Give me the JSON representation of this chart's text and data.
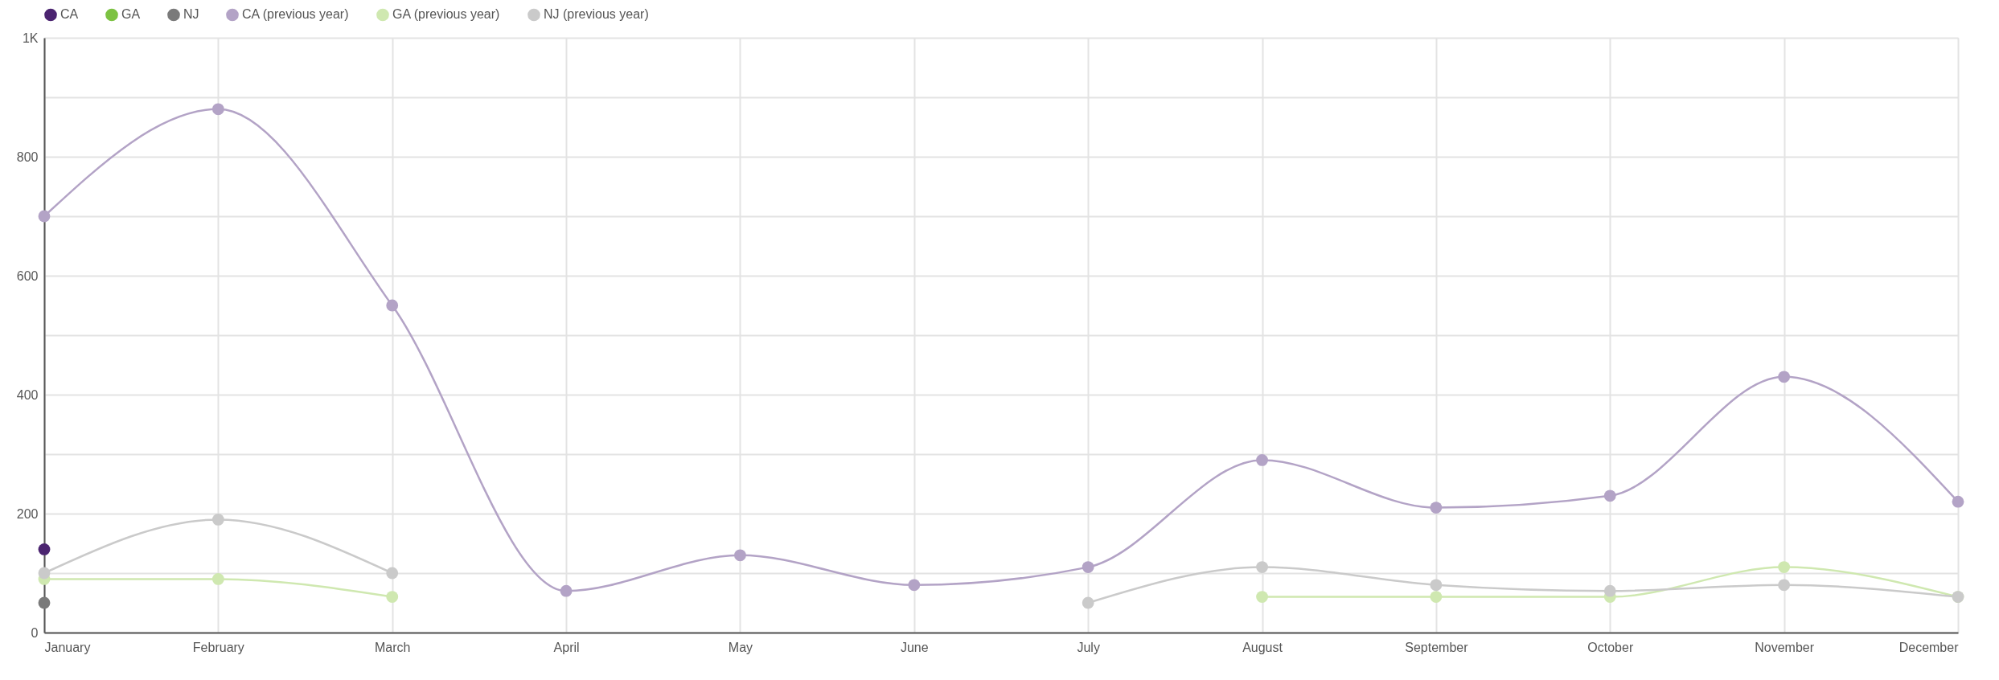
{
  "chart_data": {
    "type": "line",
    "categories": [
      "January",
      "February",
      "March",
      "April",
      "May",
      "June",
      "July",
      "August",
      "September",
      "October",
      "November",
      "December"
    ],
    "series": [
      {
        "name": "CA",
        "color": "#4b2470",
        "values": [
          140,
          null,
          null,
          null,
          null,
          null,
          null,
          null,
          null,
          null,
          null,
          null
        ]
      },
      {
        "name": "GA",
        "color": "#7cc242",
        "values": [
          null,
          null,
          null,
          null,
          null,
          null,
          null,
          null,
          null,
          null,
          null,
          null
        ]
      },
      {
        "name": "NJ",
        "color": "#7a7a7a",
        "values": [
          50,
          null,
          null,
          null,
          null,
          null,
          null,
          null,
          null,
          null,
          null,
          null
        ]
      },
      {
        "name": "CA (previous year)",
        "color": "#b3a3c6",
        "values": [
          700,
          880,
          550,
          70,
          130,
          80,
          110,
          290,
          210,
          230,
          430,
          220
        ]
      },
      {
        "name": "GA (previous year)",
        "color": "#cfe8b0",
        "values": [
          90,
          90,
          60,
          null,
          null,
          null,
          null,
          60,
          60,
          60,
          110,
          60
        ]
      },
      {
        "name": "NJ (previous year)",
        "color": "#cacaca",
        "values": [
          100,
          190,
          100,
          null,
          null,
          null,
          50,
          110,
          80,
          70,
          80,
          60
        ]
      }
    ],
    "ylim": [
      0,
      1000
    ],
    "yticks": [
      0,
      {
        "value": 100,
        "label": null
      },
      200,
      {
        "value": 300,
        "label": null
      },
      400,
      {
        "value": 500,
        "label": null
      },
      600,
      {
        "value": 700,
        "label": null
      },
      800,
      {
        "value": 900,
        "label": null
      },
      {
        "value": 1000,
        "label": "1K"
      }
    ],
    "grid": true,
    "legend": "top left",
    "marker": "circle",
    "line_style": "solid"
  }
}
